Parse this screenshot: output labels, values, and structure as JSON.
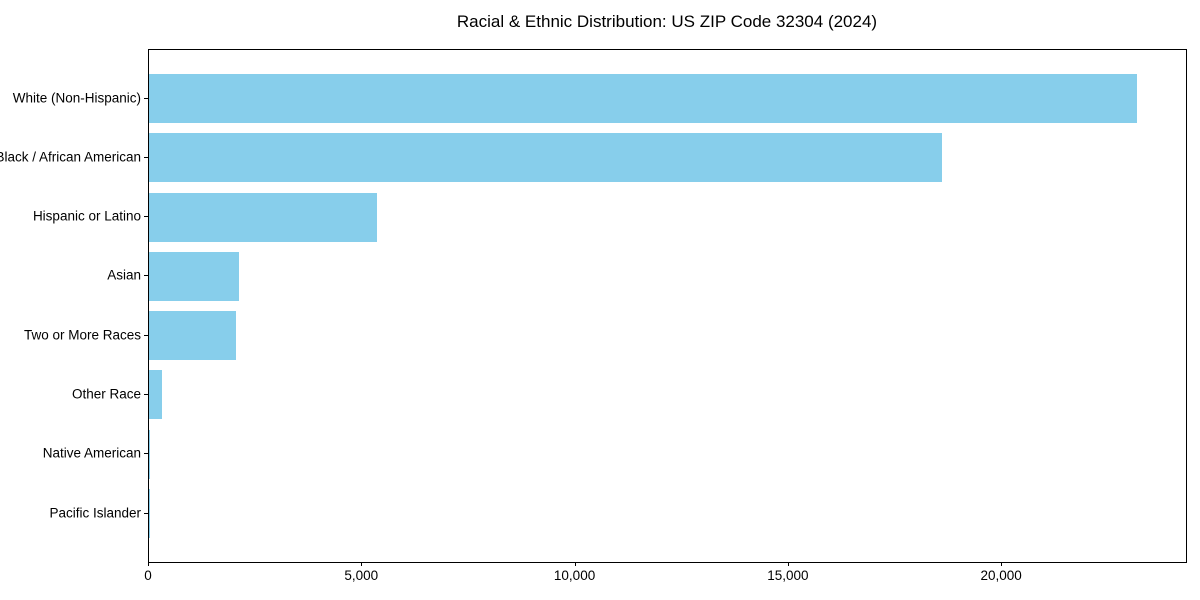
{
  "title": "Racial & Ethnic Distribution: US ZIP Code 32304 (2024)",
  "chart_data": {
    "type": "bar",
    "orientation": "horizontal",
    "title": "Racial & Ethnic Distribution: US ZIP Code 32304 (2024)",
    "categories": [
      "White (Non-Hispanic)",
      "Black / African American",
      "Hispanic or Latino",
      "Asian",
      "Two or More Races",
      "Other Race",
      "Native American",
      "Pacific Islander"
    ],
    "values": [
      23150,
      18600,
      5340,
      2100,
      2030,
      300,
      20,
      10
    ],
    "xlabel": "",
    "ylabel": "",
    "xlim": [
      0,
      24310
    ],
    "x_ticks": [
      0,
      5000,
      10000,
      15000,
      20000
    ],
    "x_tick_labels": [
      "0",
      "5,000",
      "10,000",
      "15,000",
      "20,000"
    ],
    "bar_color": "#87CEEB",
    "axis_color": "#000000",
    "background_color": "#FFFFFF",
    "grid": false,
    "legend_position": "none"
  }
}
